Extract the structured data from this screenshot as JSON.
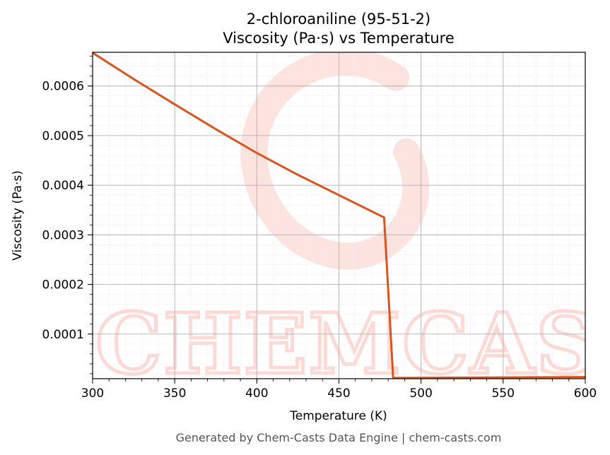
{
  "chart_data": {
    "type": "line",
    "title": "2-chloroaniline (95-51-2)",
    "subtitle": "Viscosity (Pa·s) vs Temperature",
    "xlabel": "Temperature (K)",
    "ylabel": "Viscosity (Pa·s)",
    "xlim": [
      300,
      600
    ],
    "ylim": [
      1e-05,
      0.000668
    ],
    "xticks": [
      "300",
      "350",
      "400",
      "450",
      "500",
      "550",
      "600"
    ],
    "yticks": [
      "0.0001",
      "0.0002",
      "0.0003",
      "0.0004",
      "0.0005",
      "0.0006"
    ],
    "grid": true,
    "series": [
      {
        "color": "#d9541e",
        "x": [
          300,
          325,
          350,
          375,
          400,
          425,
          450,
          477.5,
          483,
          500,
          550,
          600
        ],
        "y": [
          0.000667,
          0.000614,
          0.000563,
          0.000513,
          0.000465,
          0.000421,
          0.00038,
          0.000335,
          1.15e-05,
          1.18e-05,
          1.26e-05,
          1.34e-05
        ]
      }
    ]
  },
  "watermark": {
    "text": "CHEMCASTS",
    "color": "#fcd9d4"
  },
  "footer": "Generated by Chem-Casts Data Engine | chem-casts.com"
}
